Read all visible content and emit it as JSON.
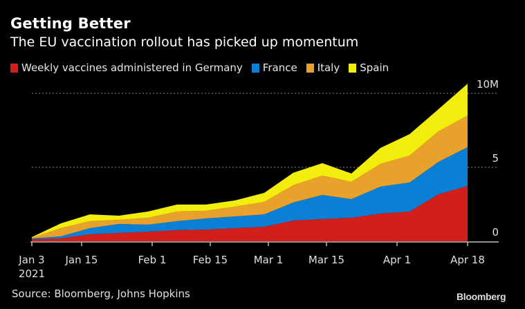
{
  "header": {
    "title": "Getting Better",
    "subtitle": "The EU vaccination rollout has picked up momentum"
  },
  "footer": {
    "source": "Source: Bloomberg, Johns Hopkins",
    "brand": "Bloomberg"
  },
  "chart_data": {
    "type": "area",
    "stacked": true,
    "title": "Getting Better",
    "subtitle": "The EU vaccination rollout has picked up momentum",
    "xlabel": "",
    "ylabel": "",
    "x": [
      "2021-01-03",
      "2021-01-10",
      "2021-01-17",
      "2021-01-24",
      "2021-01-31",
      "2021-02-07",
      "2021-02-14",
      "2021-02-21",
      "2021-02-28",
      "2021-03-07",
      "2021-03-14",
      "2021-03-21",
      "2021-03-28",
      "2021-04-04",
      "2021-04-11",
      "2021-04-18"
    ],
    "x_ticks": [
      {
        "date": "2021-01-03",
        "label": "Jan 3",
        "sublabel": "2021"
      },
      {
        "date": "2021-01-15",
        "label": "Jan 15"
      },
      {
        "date": "2021-02-01",
        "label": "Feb 1"
      },
      {
        "date": "2021-02-15",
        "label": "Feb 15"
      },
      {
        "date": "2021-03-01",
        "label": "Mar 1"
      },
      {
        "date": "2021-03-15",
        "label": "Mar 15"
      },
      {
        "date": "2021-04-01",
        "label": "Apr 1"
      },
      {
        "date": "2021-04-18",
        "label": "Apr 18"
      }
    ],
    "y_ticks": [
      {
        "value": 0,
        "label": "0"
      },
      {
        "value": 5000000,
        "label": "5"
      },
      {
        "value": 10000000,
        "label": "10M"
      }
    ],
    "ylim": [
      0,
      10000000
    ],
    "grid": "horizontal dotted",
    "legend_position": "top-left",
    "series": [
      {
        "name": "Weekly vaccines administered in Germany",
        "color": "#d21f1b",
        "values": [
          140000,
          190000,
          470000,
          560000,
          650000,
          750000,
          790000,
          890000,
          980000,
          1400000,
          1500000,
          1590000,
          1870000,
          2010000,
          3180000,
          3740000
        ]
      },
      {
        "name": "France",
        "color": "#0a7fd6",
        "values": [
          50000,
          140000,
          420000,
          610000,
          470000,
          610000,
          750000,
          790000,
          840000,
          1220000,
          1630000,
          1260000,
          1820000,
          1960000,
          2190000,
          2620000
        ]
      },
      {
        "name": "Italy",
        "color": "#e9a12c",
        "values": [
          40000,
          560000,
          470000,
          280000,
          470000,
          650000,
          520000,
          660000,
          840000,
          1170000,
          1310000,
          1170000,
          1540000,
          1820000,
          2060000,
          2140000
        ]
      },
      {
        "name": "Spain",
        "color": "#f2ed0c",
        "values": [
          50000,
          320000,
          460000,
          280000,
          420000,
          470000,
          420000,
          420000,
          610000,
          840000,
          840000,
          560000,
          1080000,
          1450000,
          1500000,
          2150000
        ]
      }
    ]
  }
}
